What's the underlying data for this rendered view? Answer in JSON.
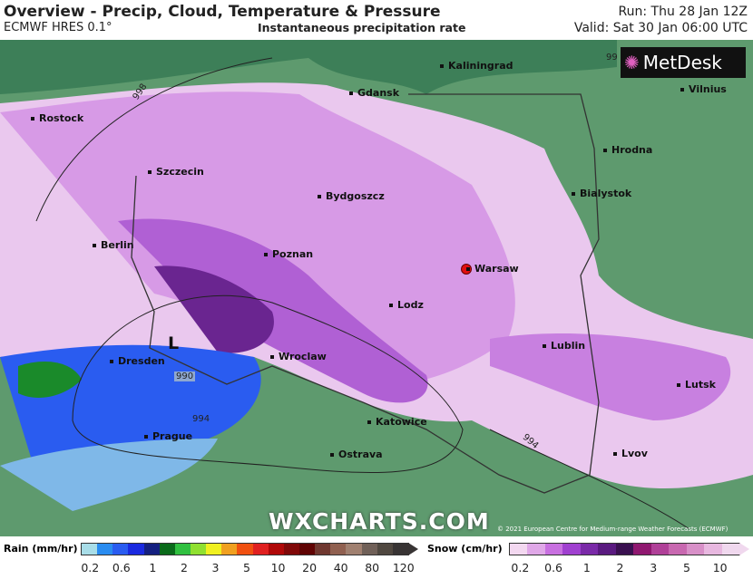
{
  "header": {
    "title": "Overview - Precip, Cloud, Temperature & Pressure",
    "model": "ECMWF HRES 0.1°",
    "subtitle": "Instantaneous precipitation rate",
    "run": "Run: Thu 28 Jan 12Z",
    "valid": "Valid: Sat 30 Jan 06:00 UTC"
  },
  "map": {
    "cities": [
      {
        "name": "Kaliningrad"
      },
      {
        "name": "Gdansk"
      },
      {
        "name": "Rostock"
      },
      {
        "name": "Hrodna"
      },
      {
        "name": "Szczecin"
      },
      {
        "name": "Bydgoszcz"
      },
      {
        "name": "Bialystok"
      },
      {
        "name": "Berlin"
      },
      {
        "name": "Poznan"
      },
      {
        "name": "Warsaw"
      },
      {
        "name": "Lodz"
      },
      {
        "name": "Lublin"
      },
      {
        "name": "Dresden"
      },
      {
        "name": "Wroclaw"
      },
      {
        "name": "Lutsk"
      },
      {
        "name": "Katowice"
      },
      {
        "name": "Prague"
      },
      {
        "name": "Ostrava"
      },
      {
        "name": "Lvov"
      },
      {
        "name": "Vilnius"
      }
    ],
    "low_label": "L",
    "low_pressure": "990",
    "isobars": [
      "998",
      "994",
      "994",
      "99"
    ],
    "capital_marker_color": "#e01010"
  },
  "logo": "MetDesk",
  "watermark": "WXCHARTS.COM",
  "copyright": "© 2021 European Centre for Medium-range Weather Forecasts (ECMWF)",
  "legend": {
    "rain": {
      "label": "Rain (mm/hr)",
      "ticks": [
        "0.2",
        "0.6",
        "1",
        "2",
        "3",
        "5",
        "10",
        "20",
        "40",
        "80",
        "120"
      ],
      "colors": [
        "#a8dde8",
        "#2a8cf0",
        "#2a5cf0",
        "#1a2ae0",
        "#142080",
        "#0a6a1a",
        "#30c040",
        "#90e030",
        "#f0f020",
        "#f0a020",
        "#f05010",
        "#e02020",
        "#b00808",
        "#800808",
        "#600404",
        "#703830",
        "#906050",
        "#a08070",
        "#706058",
        "#504840",
        "#383434"
      ]
    },
    "snow": {
      "label": "Snow (cm/hr)",
      "ticks": [
        "0.2",
        "0.6",
        "1",
        "2",
        "3",
        "5",
        "10"
      ],
      "colors": [
        "#f3d8f0",
        "#e0a8e8",
        "#c870e0",
        "#a040d0",
        "#7a2aa8",
        "#5a1a80",
        "#3a1050",
        "#901870",
        "#b04098",
        "#c868b0",
        "#d890c8",
        "#e8b8e0",
        "#f0d8ee"
      ]
    }
  }
}
